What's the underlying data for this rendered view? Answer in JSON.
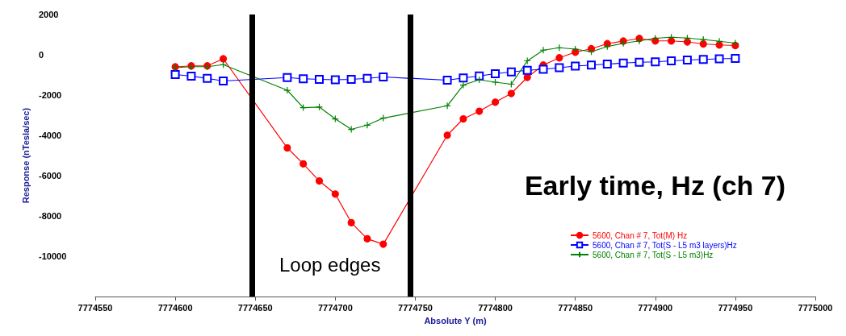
{
  "chart_data": {
    "type": "line",
    "xlabel": "Absolute Y (m)",
    "ylabel": "Response (nTesla/sec)",
    "xlim": [
      7774550,
      7775000
    ],
    "xticks": [
      7774550,
      7774600,
      7774650,
      7774700,
      7774750,
      7774800,
      7774850,
      7774900,
      7774950,
      7775000
    ],
    "ylim": [
      -12000,
      2000
    ],
    "yticks": [
      -10000,
      -8000,
      -6000,
      -4000,
      -2000,
      0,
      2000
    ],
    "grid": false,
    "legend": "bottom right",
    "annotations": [
      "Early time, Hz (ch 7)",
      "Loop edges"
    ],
    "ref_lines": [
      {
        "axis": "x",
        "value": 7774648,
        "color": "#000000"
      },
      {
        "axis": "x",
        "value": 7774747,
        "color": "#000000"
      }
    ],
    "series": [
      {
        "name": "5600, Chan # 7, Tot(M) Hz",
        "color": "#ff0000",
        "marker": "circle",
        "x": [
          7774600,
          7774610,
          7774620,
          7774630,
          7774670,
          7774680,
          7774690,
          7774700,
          7774710,
          7774720,
          7774730,
          7774770,
          7774780,
          7774790,
          7774800,
          7774810,
          7774820,
          7774830,
          7774840,
          7774850,
          7774860,
          7774870,
          7774880,
          7774890,
          7774900,
          7774910,
          7774920,
          7774930,
          7774940,
          7774950
        ],
        "values": [
          -600,
          -550,
          -550,
          -200,
          -4620,
          -5410,
          -6260,
          -6910,
          -8330,
          -9130,
          -9400,
          -3990,
          -3180,
          -2800,
          -2350,
          -1920,
          -1120,
          -510,
          -150,
          130,
          300,
          550,
          680,
          810,
          690,
          690,
          640,
          540,
          490,
          460
        ]
      },
      {
        "name": "5600, Chan # 7, Tot(S - L5 m3 layers)Hz",
        "color": "#0000ff",
        "marker": "square",
        "x": [
          7774600,
          7774610,
          7774620,
          7774630,
          7774670,
          7774680,
          7774690,
          7774700,
          7774710,
          7774720,
          7774730,
          7774770,
          7774780,
          7774790,
          7774800,
          7774810,
          7774820,
          7774830,
          7774840,
          7774850,
          7774860,
          7774870,
          7774880,
          7774890,
          7774900,
          7774910,
          7774920,
          7774930,
          7774940,
          7774950
        ],
        "values": [
          -980,
          -1060,
          -1170,
          -1300,
          -1130,
          -1190,
          -1220,
          -1240,
          -1220,
          -1170,
          -1100,
          -1260,
          -1150,
          -1050,
          -940,
          -850,
          -770,
          -720,
          -640,
          -560,
          -510,
          -460,
          -410,
          -370,
          -350,
          -300,
          -260,
          -230,
          -200,
          -180
        ]
      },
      {
        "name": "5600, Chan # 7, Tot(S - L5 m3)Hz",
        "color": "#008000",
        "marker": "cross",
        "x": [
          7774600,
          7774610,
          7774620,
          7774630,
          7774670,
          7774680,
          7774690,
          7774700,
          7774710,
          7774720,
          7774730,
          7774770,
          7774780,
          7774790,
          7774800,
          7774810,
          7774820,
          7774830,
          7774840,
          7774850,
          7774860,
          7774870,
          7774880,
          7774890,
          7774900,
          7774910,
          7774920,
          7774930,
          7774940,
          7774950
        ],
        "values": [
          -640,
          -590,
          -590,
          -490,
          -1760,
          -2620,
          -2590,
          -3180,
          -3700,
          -3490,
          -3140,
          -2530,
          -1500,
          -1240,
          -1360,
          -1460,
          -300,
          230,
          350,
          280,
          150,
          410,
          570,
          690,
          820,
          870,
          830,
          760,
          670,
          580
        ]
      }
    ]
  }
}
